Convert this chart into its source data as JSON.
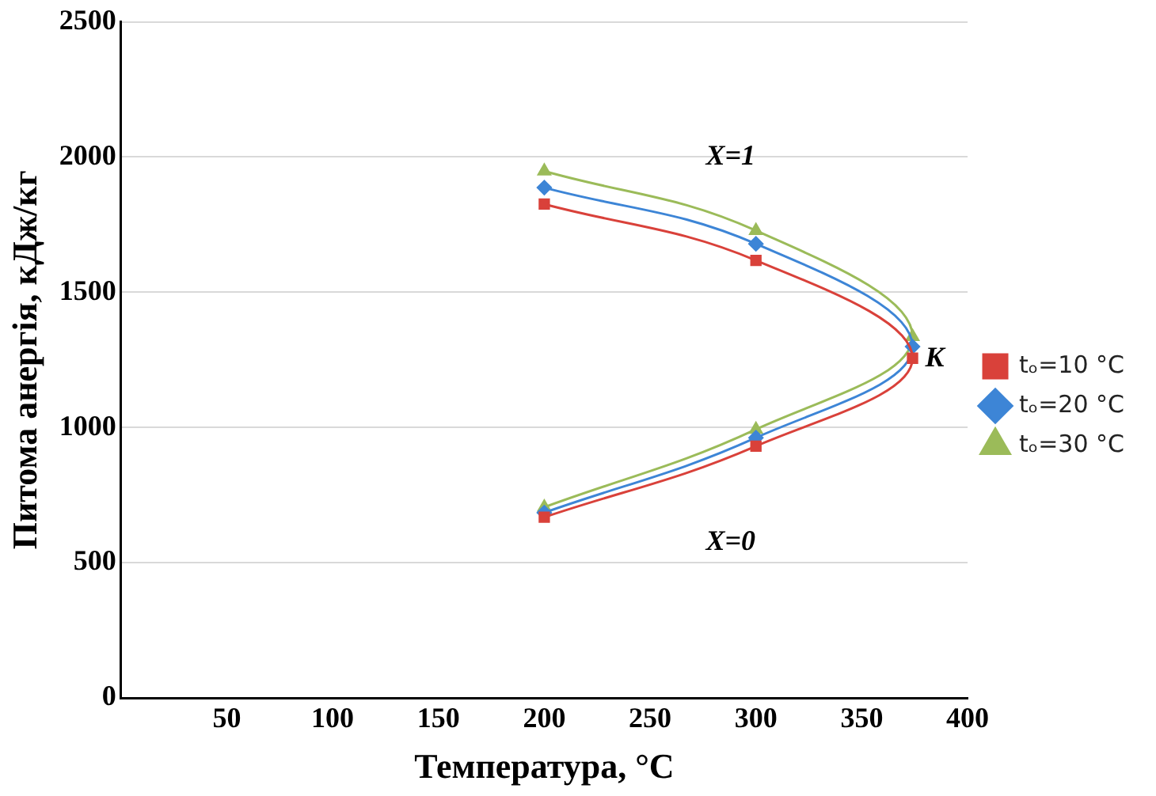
{
  "chart_data": {
    "type": "line",
    "xlabel": "Температура, °C",
    "ylabel": "Питома анергія, кДж/кг",
    "xlim": [
      0,
      400
    ],
    "xticks": [
      {
        "value": 0,
        "label": null
      },
      50,
      100,
      150,
      200,
      250,
      300,
      350,
      400
    ],
    "ylim": [
      0,
      2500
    ],
    "yticks": [
      0,
      500,
      1000,
      1500,
      2000,
      2500
    ],
    "grid": "y",
    "legend": "right",
    "series": [
      {
        "name": "tₒ=10 °C",
        "color": "#d9413a",
        "marker": "square",
        "x": [
          200,
          300,
          374,
          300,
          200
        ],
        "values": [
          668,
          931,
          1256,
          1618,
          1826
        ]
      },
      {
        "name": "tₒ=20 °C",
        "color": "#3d85d6",
        "marker": "diamond",
        "x": [
          200,
          300,
          374,
          300,
          200
        ],
        "values": [
          685,
          962,
          1299,
          1679,
          1887
        ]
      },
      {
        "name": "tₒ=30 °C",
        "color": "#9bbb59",
        "marker": "triangle",
        "x": [
          200,
          300,
          374,
          300,
          200
        ],
        "values": [
          705,
          993,
          1336,
          1728,
          1948
        ]
      }
    ],
    "annotations": [
      "X=1",
      "X=0",
      {
        "text": "K",
        "x": 374,
        "y": 1299
      }
    ]
  }
}
